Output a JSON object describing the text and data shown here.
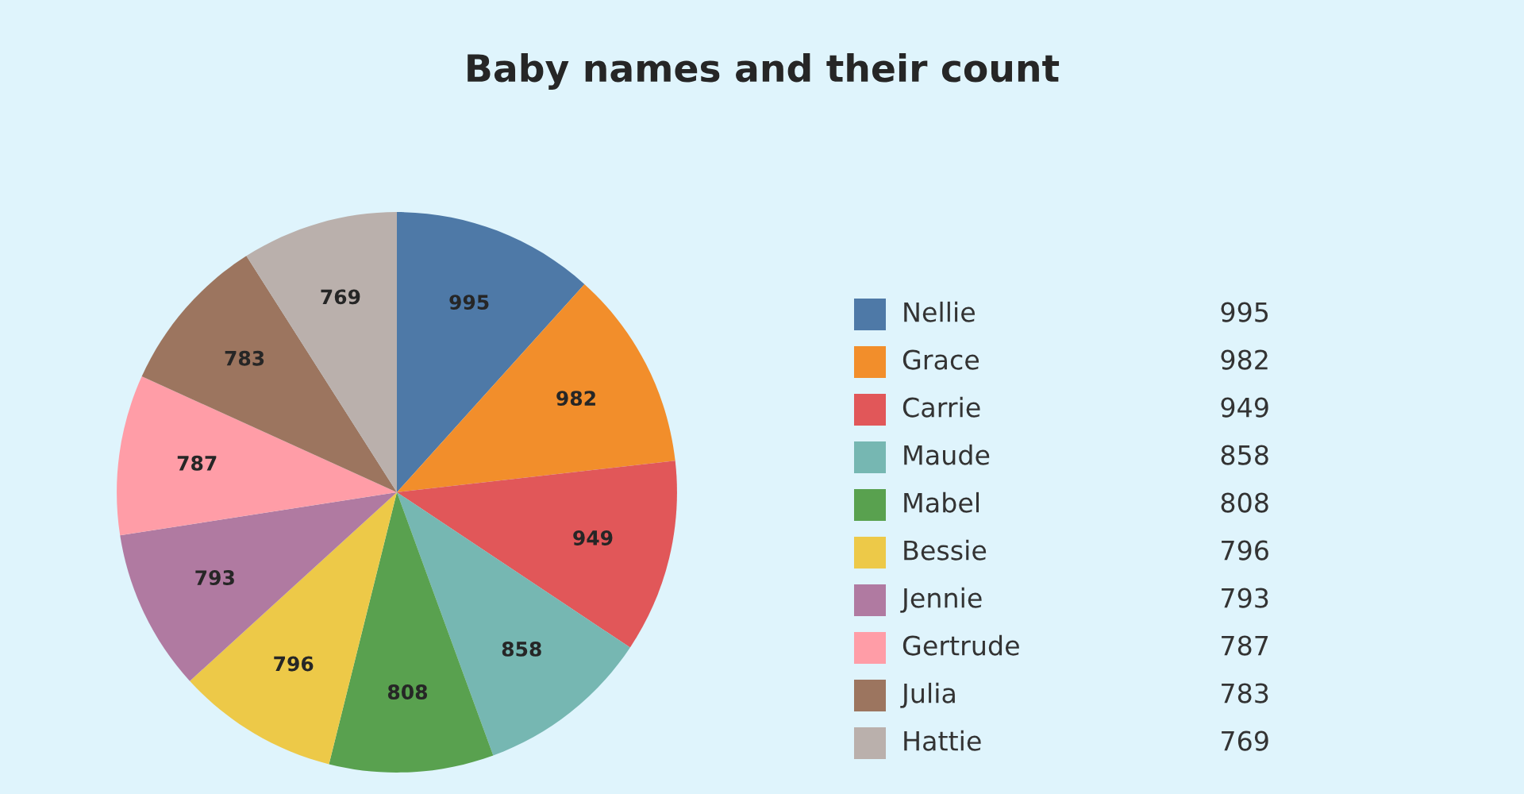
{
  "chart_data": {
    "type": "pie",
    "title": "Baby names and their count",
    "categories": [
      "Nellie",
      "Grace",
      "Carrie",
      "Maude",
      "Mabel",
      "Bessie",
      "Jennie",
      "Gertrude",
      "Julia",
      "Hattie"
    ],
    "values": [
      995,
      982,
      949,
      858,
      808,
      796,
      793,
      787,
      783,
      769
    ],
    "colors": [
      "#4e79a7",
      "#f28e2b",
      "#e15759",
      "#76b7b2",
      "#59a14f",
      "#edc948",
      "#b07aa1",
      "#ff9da7",
      "#9c755f",
      "#bab0ac"
    ],
    "annotations": [
      "995",
      "982",
      "949",
      "858",
      "808",
      "796",
      "793",
      "787",
      "783",
      "769"
    ],
    "data_labels": true,
    "legend": "right"
  }
}
